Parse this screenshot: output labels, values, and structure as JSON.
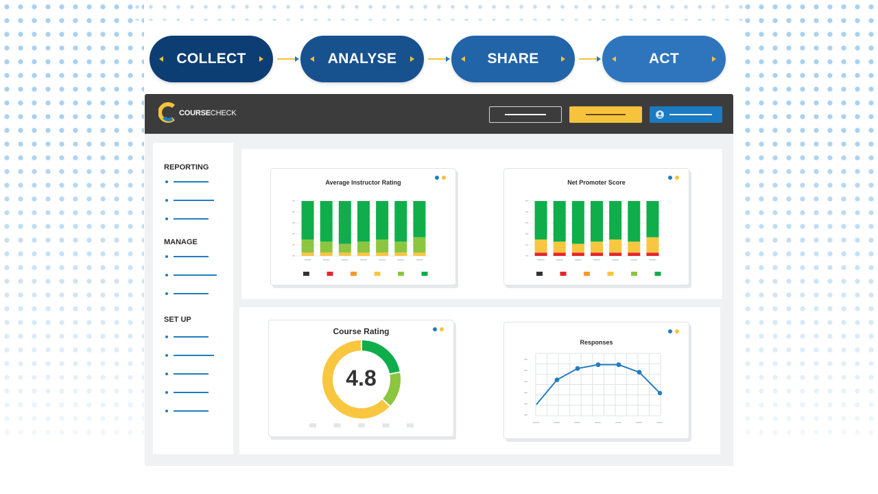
{
  "steps": [
    {
      "label": "COLLECT",
      "color": "#0c3e73"
    },
    {
      "label": "ANALYSE",
      "color": "#17528f"
    },
    {
      "label": "SHARE",
      "color": "#2164a8"
    },
    {
      "label": "ACT",
      "color": "#2e75bd"
    }
  ],
  "app": {
    "brand_bold": "COURSE",
    "brand_light": "CHECK",
    "topbar_colors": {
      "outline": "#ffffff",
      "yellow": "#f7c33c",
      "blue": "#1b7ac2"
    }
  },
  "sidebar": {
    "sections": [
      {
        "title": "REPORTING",
        "item_count": 3
      },
      {
        "title": "MANAGE",
        "item_count": 3
      },
      {
        "title": "SET UP",
        "item_count": 5
      }
    ]
  },
  "cards": {
    "avg_instructor": {
      "title": "Average Instructor Rating"
    },
    "nps": {
      "title": "Net Promoter Score"
    },
    "course_rating": {
      "title": "Course Rating",
      "value": "4.8"
    },
    "responses": {
      "title": "Responses"
    }
  },
  "colors": {
    "accent_blue": "#1f7cc1",
    "accent_yellow": "#f5c23a",
    "green_dark": "#0fae4b",
    "green_light": "#8cc640",
    "yellow": "#f9c640",
    "orange": "#f29a2e",
    "red": "#e5262e",
    "black": "#333333"
  },
  "chart_data": [
    {
      "type": "bar",
      "stacked": true,
      "title": "Average Instructor Rating",
      "categories": [
        "",
        "",
        "",
        "",
        "",
        "",
        ""
      ],
      "series": [
        {
          "color": "#f9c640",
          "values": [
            6,
            6,
            6,
            6,
            6,
            6,
            6
          ]
        },
        {
          "color": "#8cc640",
          "values": [
            24,
            20,
            16,
            20,
            24,
            20,
            28
          ]
        },
        {
          "color": "#0fae4b",
          "values": [
            70,
            74,
            78,
            74,
            70,
            74,
            66
          ]
        }
      ],
      "legend_colors": [
        "#333333",
        "#e5262e",
        "#f29a2e",
        "#f9c640",
        "#8cc640",
        "#0fae4b"
      ],
      "ylim": [
        0,
        100
      ]
    },
    {
      "type": "bar",
      "stacked": true,
      "title": "Net Promoter Score",
      "categories": [
        "",
        "",
        "",
        "",
        "",
        "",
        ""
      ],
      "series": [
        {
          "color": "#e5262e",
          "values": [
            6,
            6,
            6,
            6,
            6,
            6,
            6
          ]
        },
        {
          "color": "#f9c640",
          "values": [
            24,
            20,
            16,
            20,
            24,
            20,
            28
          ]
        },
        {
          "color": "#0fae4b",
          "values": [
            70,
            74,
            78,
            74,
            70,
            74,
            66
          ]
        }
      ],
      "legend_colors": [
        "#333333",
        "#e5262e",
        "#f29a2e",
        "#f9c640",
        "#8cc640",
        "#0fae4b"
      ],
      "ylim": [
        0,
        100
      ]
    },
    {
      "type": "pie",
      "title": "Course Rating",
      "slices": [
        {
          "color": "#0fae4b",
          "value": 22
        },
        {
          "color": "#8cc640",
          "value": 15
        },
        {
          "color": "#f9c640",
          "value": 63
        }
      ],
      "center_label": "4.8"
    },
    {
      "type": "line",
      "title": "Responses",
      "x": [
        1,
        2,
        3,
        4,
        5,
        6,
        7
      ],
      "y": [
        12,
        38,
        50,
        54,
        54,
        46,
        24
      ],
      "ylim": [
        0,
        66
      ],
      "grid": true,
      "color": "#1f7cc1"
    }
  ]
}
